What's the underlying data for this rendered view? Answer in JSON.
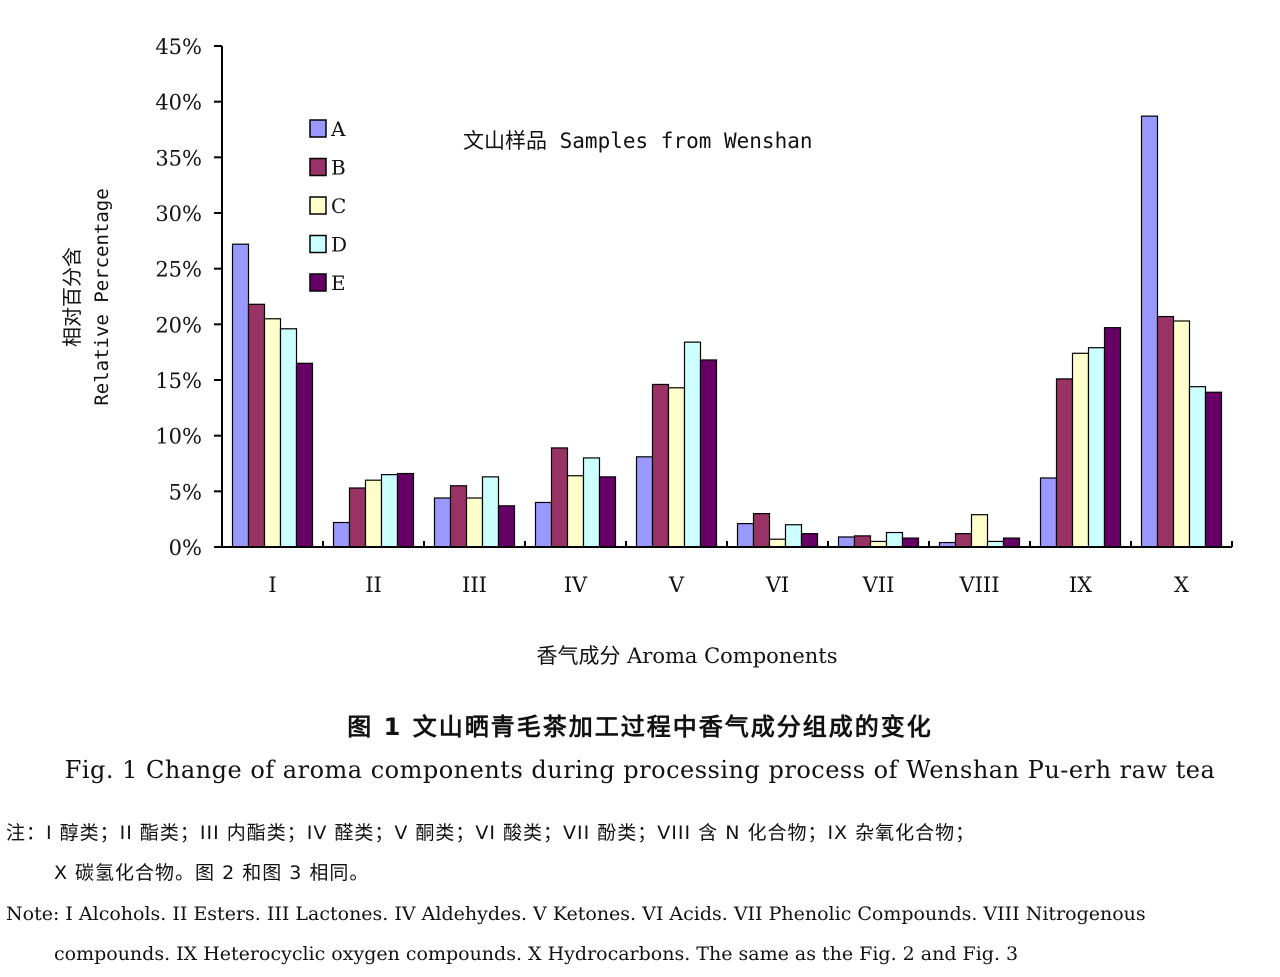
{
  "chart_data": {
    "type": "bar",
    "title": "文山样品 Samples from Wenshan",
    "xlabel": "香气成分  Aroma Components",
    "ylabel_zh": "相对百分含",
    "ylabel_en": "Relative Percentage",
    "ylim": [
      0,
      45
    ],
    "yticks": [
      "0%",
      "5%",
      "10%",
      "15%",
      "20%",
      "25%",
      "30%",
      "35%",
      "40%",
      "45%"
    ],
    "categories": [
      "I",
      "II",
      "III",
      "IV",
      "V",
      "VI",
      "VII",
      "VIII",
      "IX",
      "X"
    ],
    "legend_position": "top-left",
    "grid": false,
    "series": [
      {
        "name": "A",
        "color": "#9999ff",
        "values": [
          27.2,
          2.2,
          4.4,
          4.0,
          8.1,
          2.1,
          0.9,
          0.4,
          6.2,
          38.7
        ]
      },
      {
        "name": "B",
        "color": "#993366",
        "values": [
          21.8,
          5.3,
          5.5,
          8.9,
          14.6,
          3.0,
          1.0,
          1.2,
          15.1,
          20.7
        ]
      },
      {
        "name": "C",
        "color": "#ffffcc",
        "values": [
          20.5,
          6.0,
          4.4,
          6.4,
          14.3,
          0.7,
          0.5,
          2.9,
          17.4,
          20.3
        ]
      },
      {
        "name": "D",
        "color": "#ccffff",
        "values": [
          19.6,
          6.5,
          6.3,
          8.0,
          18.4,
          2.0,
          1.3,
          0.5,
          17.9,
          14.4
        ]
      },
      {
        "name": "E",
        "color": "#660066",
        "values": [
          16.5,
          6.6,
          3.7,
          6.3,
          16.8,
          1.2,
          0.8,
          0.8,
          19.7,
          13.9
        ]
      }
    ]
  },
  "caption": {
    "zh": "图 1  文山晒青毛茶加工过程中香气成分组成的变化",
    "en": "Fig. 1 Change of aroma components during processing process of Wenshan Pu-erh raw tea"
  },
  "note": {
    "zh_line1": "注：I  醇类；II  酯类；III  内酯类；IV  醛类；V  酮类；VI  酸类；VII  酚类；VIII  含  N  化合物；IX  杂氧化合物；",
    "zh_line2": "X  碳氢化合物。图 2 和图 3 相同。",
    "en_line1": "Note: I Alcohols. II Esters. III Lactones. IV Aldehydes. V Ketones. VI Acids. VII Phenolic Compounds. VIII Nitrogenous",
    "en_line2": "compounds. IX Heterocyclic oxygen compounds. X Hydrocarbons. The same as the Fig. 2 and Fig. 3"
  }
}
